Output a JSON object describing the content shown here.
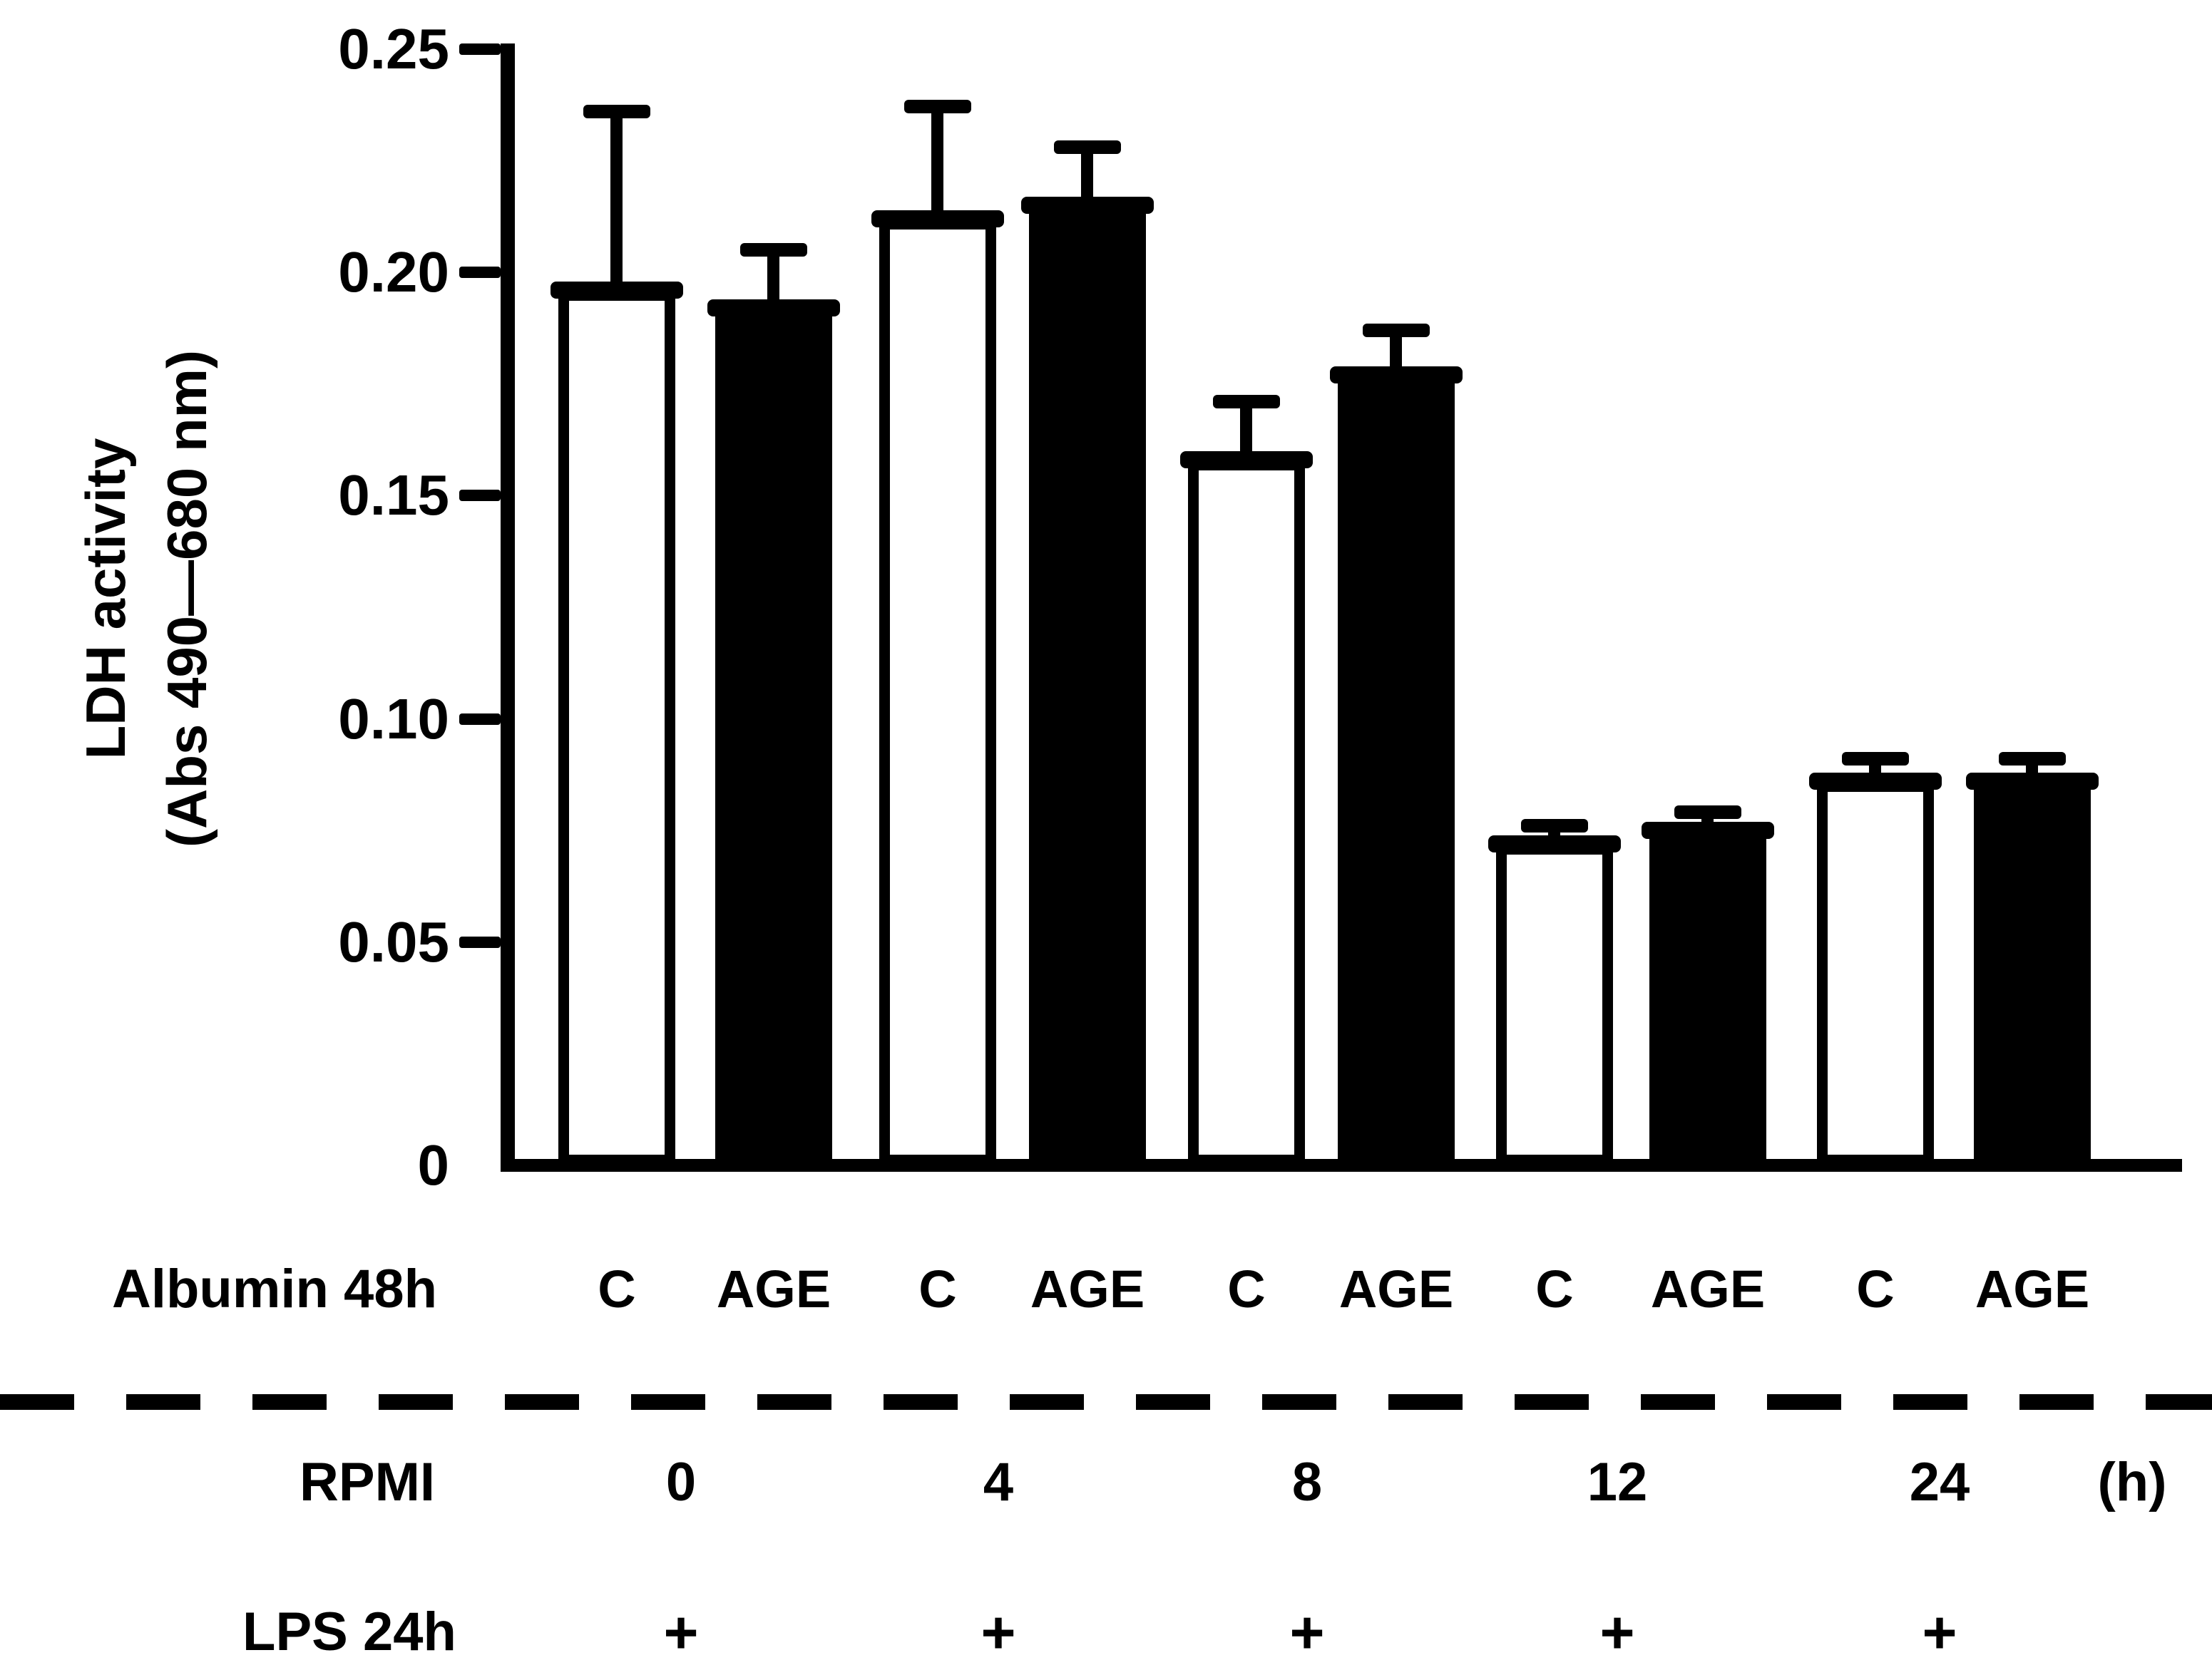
{
  "figure": {
    "background": "#ffffff",
    "ink": "#000000"
  },
  "y_axis": {
    "label_line1": "LDH activity",
    "label_line2": "(Abs 490—680 nm)",
    "ticks": [
      {
        "label": "0.25",
        "value": 0.25
      },
      {
        "label": "0.20",
        "value": 0.2
      },
      {
        "label": "0.15",
        "value": 0.15
      },
      {
        "label": "0.10",
        "value": 0.1
      },
      {
        "label": "0.05",
        "value": 0.05
      },
      {
        "label": "0",
        "value": 0
      }
    ],
    "max": 0.25
  },
  "chart_data": {
    "type": "bar",
    "title": "",
    "xlabel": "",
    "ylabel": "LDH activity (Abs 490—680 nm)",
    "ylim": [
      0,
      0.25
    ],
    "yticks": [
      0,
      0.05,
      0.1,
      0.15,
      0.2,
      0.25
    ],
    "grid": false,
    "legend_position": "none",
    "categories": [
      "0",
      "4",
      "8",
      "12",
      "24"
    ],
    "series": [
      {
        "name": "C",
        "fill": "white",
        "values": [
          0.196,
          0.212,
          0.158,
          0.072,
          0.086
        ],
        "errors": [
          0.04,
          0.025,
          0.013,
          0.004,
          0.005
        ]
      },
      {
        "name": "AGE",
        "fill": "black",
        "values": [
          0.192,
          0.215,
          0.177,
          0.075,
          0.086
        ],
        "errors": [
          0.013,
          0.013,
          0.01,
          0.004,
          0.005
        ]
      }
    ]
  },
  "annotations": {
    "albumin_label": "Albumin 48h",
    "bar_labels": [
      "C",
      "AGE"
    ],
    "rpmi_label": "RPMI",
    "rpmi_values": [
      "0",
      "4",
      "8",
      "12",
      "24"
    ],
    "rpmi_unit": "(h)",
    "lps_label": "LPS 24h",
    "lps_marks": [
      "+",
      "+",
      "+",
      "+",
      "+"
    ]
  }
}
